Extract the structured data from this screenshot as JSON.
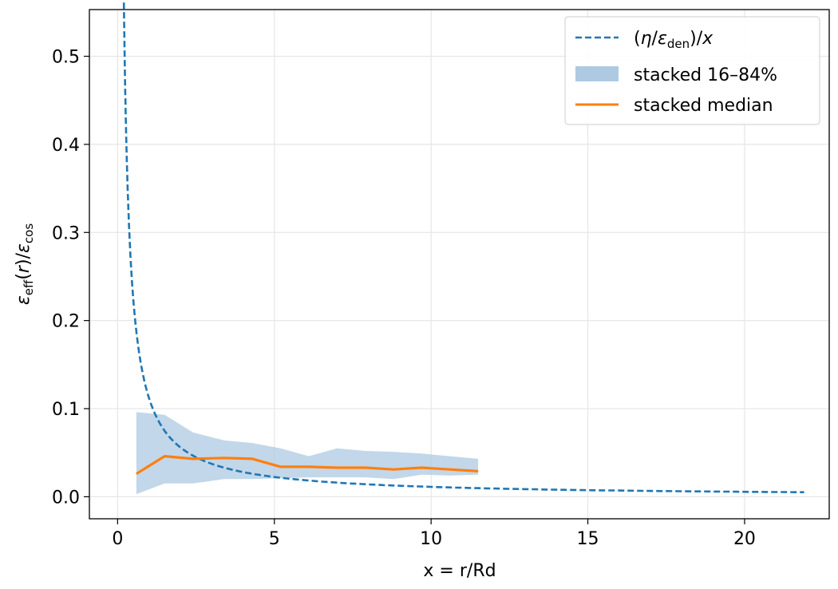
{
  "chart_data": {
    "type": "line",
    "xlabel": "x = r/Rd",
    "ylabel": "ε_eff(r)/ε_cos",
    "xlim": [
      -0.9,
      22.7
    ],
    "ylim": [
      -0.025,
      0.553
    ],
    "xticks": [
      0,
      5,
      10,
      15,
      20
    ],
    "yticks": [
      0.0,
      0.1,
      0.2,
      0.3,
      0.4,
      0.5
    ],
    "xtick_labels": [
      "0",
      "5",
      "10",
      "15",
      "20"
    ],
    "ytick_labels": [
      "0.0",
      "0.1",
      "0.2",
      "0.3",
      "0.4",
      "0.5"
    ],
    "grid": true,
    "legend_placement": "top-right",
    "legend": {
      "dashed": "(η/ε_den)/x",
      "band": "stacked 16–84%",
      "median": "stacked median"
    },
    "colors": {
      "dashed": "#1f77b4",
      "band": "#aec9e2",
      "median": "#ff7f0e"
    },
    "series": [
      {
        "name": "(η/ε_den)/x",
        "style": "dashed",
        "curve": "reciprocal",
        "coefficient": 0.1122,
        "x_range": [
          0.2,
          21.9
        ]
      },
      {
        "name": "stacked 16–84%",
        "style": "band",
        "x": [
          0.6,
          1.5,
          2.4,
          3.4,
          4.3,
          5.2,
          6.1,
          7.0,
          7.9,
          8.8,
          9.7,
          10.6,
          11.5
        ],
        "lower": [
          0.003,
          0.015,
          0.015,
          0.02,
          0.02,
          0.021,
          0.022,
          0.022,
          0.022,
          0.02,
          0.025,
          0.024,
          0.025
        ],
        "upper": [
          0.096,
          0.093,
          0.073,
          0.064,
          0.061,
          0.055,
          0.046,
          0.055,
          0.052,
          0.051,
          0.049,
          0.046,
          0.043
        ]
      },
      {
        "name": "stacked median",
        "style": "solid",
        "x": [
          0.6,
          1.5,
          2.4,
          3.4,
          4.3,
          5.2,
          6.1,
          7.0,
          7.9,
          8.8,
          9.7,
          10.6,
          11.5
        ],
        "values": [
          0.026,
          0.046,
          0.043,
          0.044,
          0.043,
          0.034,
          0.034,
          0.033,
          0.033,
          0.031,
          0.033,
          0.031,
          0.029
        ]
      }
    ]
  }
}
